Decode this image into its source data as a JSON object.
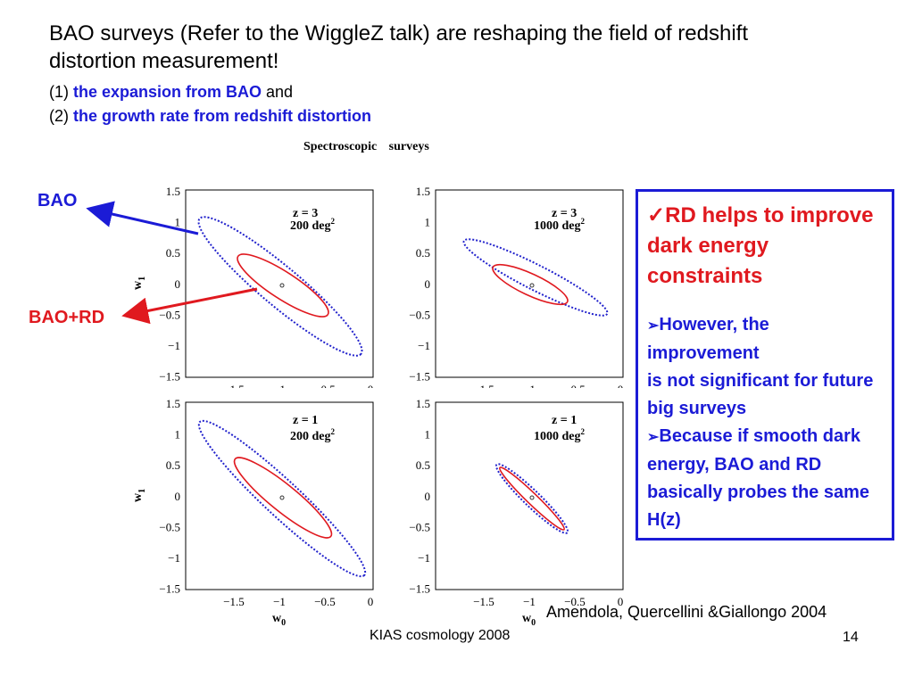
{
  "slide": {
    "title": "BAO surveys (Refer to the WiggleZ talk) are reshaping the field of redshift distortion measurement!",
    "point1_prefix": "(1) ",
    "point1_bold": "the expansion from BAO",
    "point1_suffix": " and",
    "point2_prefix": "(2) ",
    "point2_bold": "the growth rate from redshift distortion",
    "figure_title": "Spectroscopic surveys",
    "bao_label": "BAO",
    "bao_rd_label": "BAO+RD",
    "note": {
      "check_mark": "✓",
      "heading": "RD helps to improve dark energy  constraints",
      "bullet": "➢",
      "item1_a": "However, the improvement",
      "item1_b": "is not significant for future big surveys",
      "item2": "Because if smooth dark energy, BAO and RD basically probes the same H(z)"
    },
    "citation": "Amendola, Quercellini &Giallongo 2004",
    "footer": "KIAS cosmology 2008",
    "page_number": "14"
  },
  "plots": {
    "xlabel": "w0",
    "ylabel": "w1",
    "x_ticks": [
      "−1.5",
      "−1",
      "−0.5",
      "0"
    ],
    "y_ticks": [
      "1.5",
      "1",
      "0.5",
      "0",
      "−0.5",
      "−1",
      "−1.5"
    ],
    "panels": [
      {
        "z_label": "z = 3",
        "area_label": "200 deg",
        "area_sup": "2"
      },
      {
        "z_label": "z = 3",
        "area_label": "1000 deg",
        "area_sup": "2"
      },
      {
        "z_label": "z = 1",
        "area_label": "200 deg",
        "area_sup": "2"
      },
      {
        "z_label": "z = 1",
        "area_label": "1000 deg",
        "area_sup": "2"
      }
    ],
    "colors": {
      "bao": "#2222cc",
      "bao_rd": "#e0191f",
      "axis": "#000000"
    }
  }
}
